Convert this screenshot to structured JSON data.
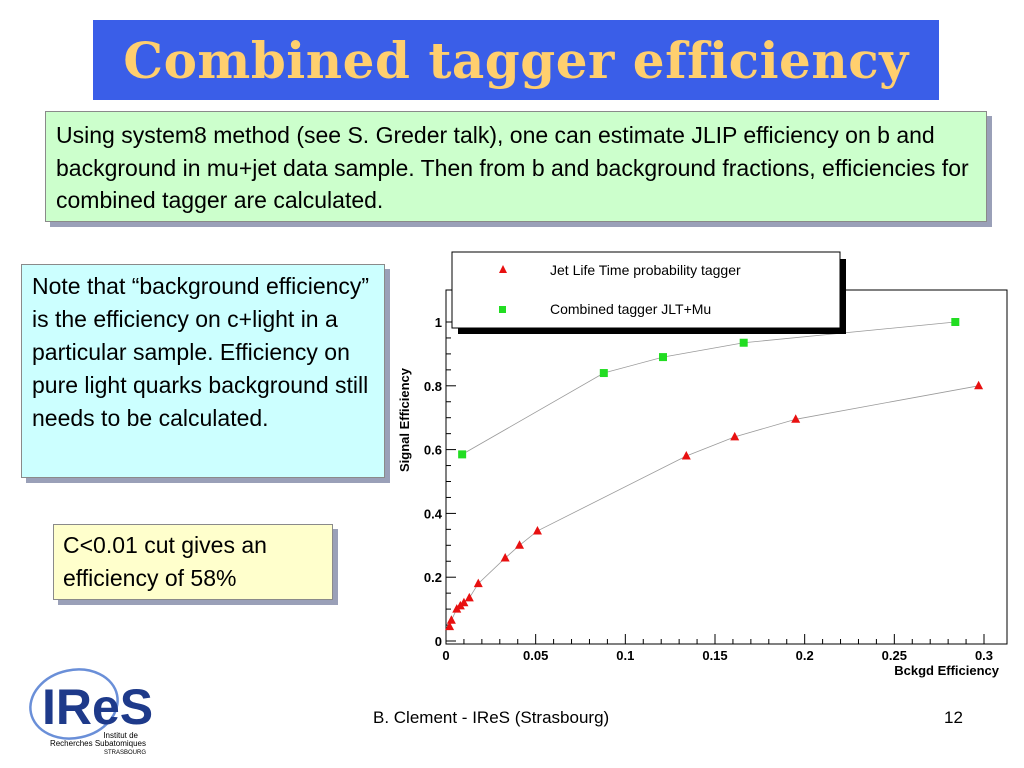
{
  "title": "Combined tagger efficiency",
  "intro_text": "Using system8 method (see S. Greder talk), one can estimate JLIP efficiency on b and background in mu+jet data sample. Then from b and background fractions, efficiencies for combined tagger are calculated.",
  "note_text": "Note that “background efficiency” is the efficiency on c+light in a particular sample. Efficiency on pure light quarks background still needs to be calculated.",
  "cut_text": "C<0.01 cut gives an efficiency of 58%",
  "footer": {
    "author": "B. Clement - IReS (Strasbourg)",
    "page": "12"
  },
  "logo": {
    "name": "IReS",
    "line1": "Institut de",
    "line2": "Recherches Subatomiques",
    "line3": "STRASBOURG",
    "colors": {
      "dark": "#1e3a8a",
      "light": "#6a8fd8"
    }
  },
  "colors": {
    "title_bg": "#3a5ee8",
    "title_text": "#ffcf6e",
    "green_box": "#ccffcc",
    "cyan_box": "#ccffff",
    "yellow_box": "#ffffcc",
    "series_jlt": "#e81010",
    "series_combined": "#22dd22"
  },
  "chart_data": {
    "type": "scatter",
    "xlabel": "Bckgd Efficiency",
    "ylabel": "Signal Efficiency",
    "xlim": [
      0,
      0.31
    ],
    "ylim": [
      0,
      1.1
    ],
    "xticks": [
      {
        "v": 0,
        "label": "0"
      },
      {
        "v": 0.05,
        "label": "0.05"
      },
      {
        "v": 0.1,
        "label": "0.1"
      },
      {
        "v": 0.15,
        "label": "0.15"
      },
      {
        "v": 0.2,
        "label": "0.2"
      },
      {
        "v": 0.25,
        "label": "0.25"
      },
      {
        "v": 0.3,
        "label": "0.3"
      }
    ],
    "yticks": [
      {
        "v": 0,
        "label": "0"
      },
      {
        "v": 0.2,
        "label": "0.2"
      },
      {
        "v": 0.4,
        "label": "0.4"
      },
      {
        "v": 0.6,
        "label": "0.6"
      },
      {
        "v": 0.8,
        "label": "0.8"
      },
      {
        "v": 1,
        "label": "1"
      }
    ],
    "legend_position": "top",
    "series": [
      {
        "name": "Jet Life Time probability tagger",
        "marker": "triangle",
        "color": "#e81010",
        "points": [
          [
            0.002,
            0.045
          ],
          [
            0.003,
            0.065
          ],
          [
            0.006,
            0.1
          ],
          [
            0.008,
            0.11
          ],
          [
            0.01,
            0.12
          ],
          [
            0.013,
            0.135
          ],
          [
            0.018,
            0.18
          ],
          [
            0.033,
            0.26
          ],
          [
            0.041,
            0.3
          ],
          [
            0.051,
            0.345
          ],
          [
            0.134,
            0.58
          ],
          [
            0.161,
            0.64
          ],
          [
            0.195,
            0.695
          ],
          [
            0.297,
            0.8
          ]
        ]
      },
      {
        "name": "Combined tagger JLT+Mu",
        "marker": "square",
        "color": "#22dd22",
        "points": [
          [
            0.009,
            0.585
          ],
          [
            0.088,
            0.84
          ],
          [
            0.121,
            0.89
          ],
          [
            0.166,
            0.935
          ],
          [
            0.284,
            1.0
          ]
        ]
      }
    ]
  }
}
